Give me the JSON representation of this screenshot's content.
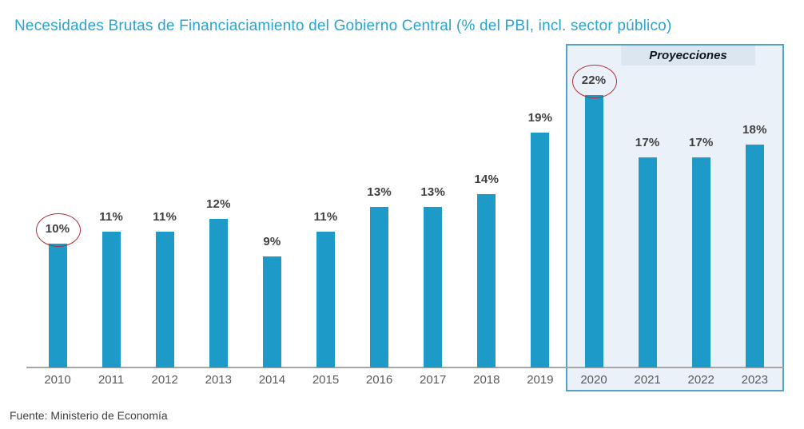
{
  "title": "Necesidades Brutas de Financiaciamiento del Gobierno Central (% del PBI, incl. sector público)",
  "projections_label": "Proyecciones",
  "source": "Fuente: Ministerio de Economía",
  "colors": {
    "bar": "#1E9AC9",
    "title": "#29A3CF",
    "projection_box_fill": "#EAF1F8",
    "projection_box_border": "#54A3C4",
    "projection_label_fill": "#DCE6F1",
    "projection_label_text": "#10151D",
    "axis_line": "#A6A6A6",
    "value_label": "#3F3F3F",
    "year_label": "#595959",
    "highlight_circle": "#B02B36",
    "background": "#FFFFFF"
  },
  "chart_data": {
    "type": "bar",
    "title": "Necesidades Brutas de Financiaciamiento del Gobierno Central (% del PBI, incl. sector público)",
    "categories": [
      "2010",
      "2011",
      "2012",
      "2013",
      "2014",
      "2015",
      "2016",
      "2017",
      "2018",
      "2019",
      "2020",
      "2021",
      "2022",
      "2023"
    ],
    "values": [
      10,
      11,
      11,
      12,
      9,
      11,
      13,
      13,
      14,
      19,
      22,
      17,
      17,
      18
    ],
    "data_labels": [
      "10%",
      "11%",
      "11%",
      "12%",
      "9%",
      "11%",
      "13%",
      "13%",
      "14%",
      "19%",
      "22%",
      "17%",
      "17%",
      "18%"
    ],
    "unit": "% del PBI",
    "xlabel": "",
    "ylabel": "",
    "ylim": [
      0,
      26
    ],
    "grid": false,
    "legend": false,
    "projection_years": [
      "2020",
      "2021",
      "2022",
      "2023"
    ],
    "projection_region_label": "Proyecciones",
    "highlighted_categories": [
      "2010",
      "2020"
    ],
    "source": "Fuente: Ministerio de Economía"
  }
}
